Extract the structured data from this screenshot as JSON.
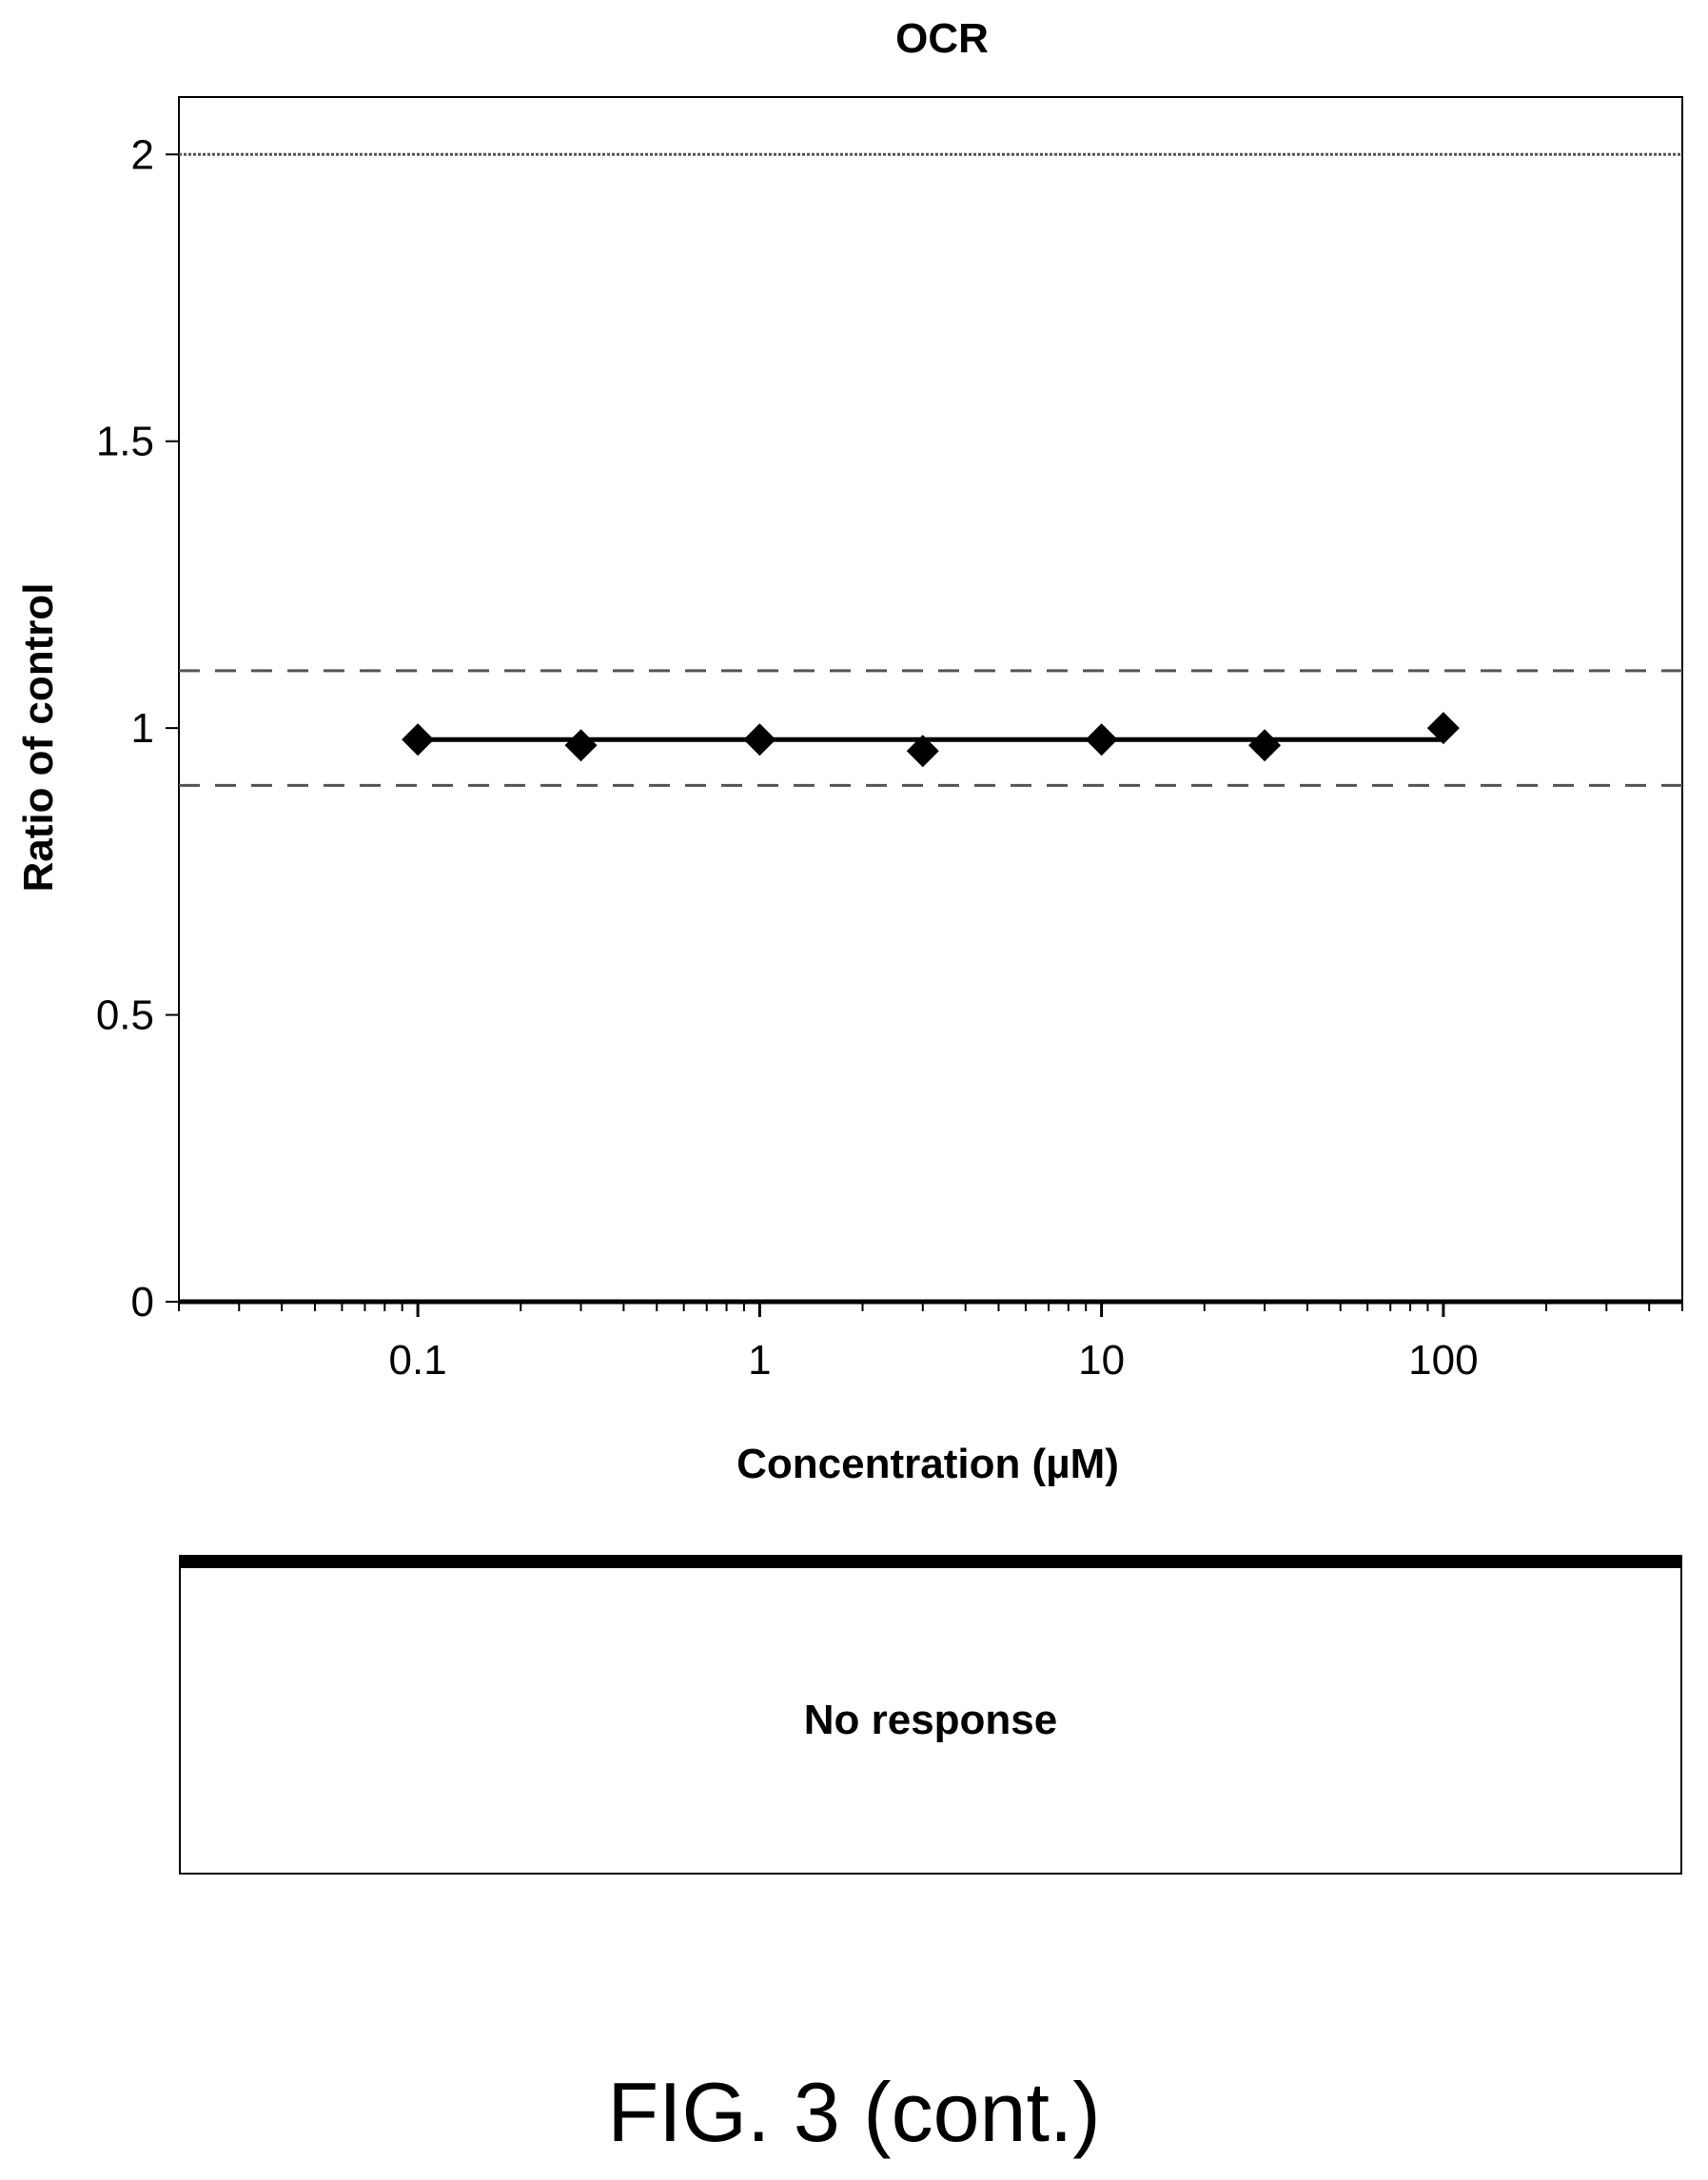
{
  "chart_data": {
    "type": "line",
    "title": "OCR",
    "xlabel": "Concentration (µM)",
    "ylabel": "Ratio of control",
    "x_scale": "log",
    "xlim": [
      0.02,
      500
    ],
    "ylim": [
      0,
      2.1
    ],
    "x_ticks": [
      {
        "value": 0.1,
        "label": "0.1"
      },
      {
        "value": 1,
        "label": "1"
      },
      {
        "value": 10,
        "label": "10"
      },
      {
        "value": 100,
        "label": "100"
      }
    ],
    "y_ticks": [
      {
        "value": 0,
        "label": "0"
      },
      {
        "value": 0.5,
        "label": "0.5"
      },
      {
        "value": 1,
        "label": "1"
      },
      {
        "value": 1.5,
        "label": "1.5"
      },
      {
        "value": 2,
        "label": "2"
      }
    ],
    "reference_lines": [
      {
        "y": 2.0,
        "style": "dotted"
      },
      {
        "y": 1.1,
        "style": "dashed"
      },
      {
        "y": 0.9,
        "style": "dashed"
      }
    ],
    "series": [
      {
        "marker": "diamond",
        "x": [
          0.1,
          0.3,
          1,
          3,
          10,
          30,
          100
        ],
        "y": [
          0.98,
          0.97,
          0.98,
          0.96,
          0.98,
          0.97,
          1.0
        ]
      }
    ],
    "fit_line": {
      "x": [
        0.1,
        100
      ],
      "y": [
        0.98,
        0.98
      ]
    },
    "grid": false
  },
  "response_box": {
    "text": "No response"
  },
  "caption": "FIG. 3 (cont.)"
}
